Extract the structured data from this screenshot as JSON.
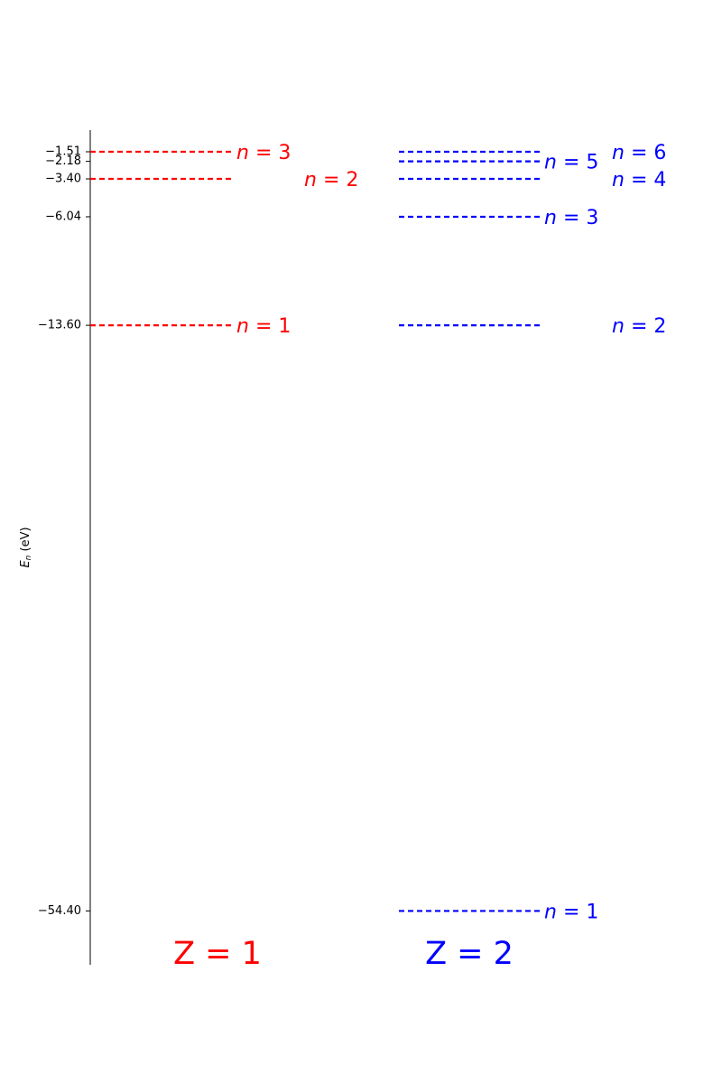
{
  "chart_data": {
    "type": "energy-level-diagram",
    "ylabel": {
      "symbol": "E",
      "subscript": "n",
      "unit": " (eV)"
    },
    "ylim": [
      -58.15,
      0.0
    ],
    "yticks": [
      -1.51,
      -2.18,
      -3.4,
      -6.04,
      -13.6,
      -54.4
    ],
    "ytick_labels": [
      "−1.51",
      "−2.18",
      "−3.40",
      "−6.04",
      "−13.60",
      "−54.40"
    ],
    "grid": false,
    "series": [
      {
        "group_label": "Z = 1",
        "color": "#ff0000",
        "levels": [
          {
            "n": 1,
            "energy": -13.6,
            "label_var": "n",
            "label_rest": " = 1"
          },
          {
            "n": 2,
            "energy": -3.4,
            "label_var": "n",
            "label_rest": " = 2"
          },
          {
            "n": 3,
            "energy": -1.51,
            "label_var": "n",
            "label_rest": " = 3"
          }
        ]
      },
      {
        "group_label": "Z = 2",
        "color": "#0000ff",
        "levels": [
          {
            "n": 1,
            "energy": -54.4,
            "label_var": "n",
            "label_rest": " = 1"
          },
          {
            "n": 2,
            "energy": -13.6,
            "label_var": "n",
            "label_rest": " = 2"
          },
          {
            "n": 3,
            "energy": -6.04,
            "label_var": "n",
            "label_rest": " = 3"
          },
          {
            "n": 4,
            "energy": -3.4,
            "label_var": "n",
            "label_rest": " = 4"
          },
          {
            "n": 5,
            "energy": -2.18,
            "label_var": "n",
            "label_rest": " = 5"
          },
          {
            "n": 6,
            "energy": -1.51,
            "label_var": "n",
            "label_rest": " = 6"
          }
        ]
      }
    ]
  }
}
